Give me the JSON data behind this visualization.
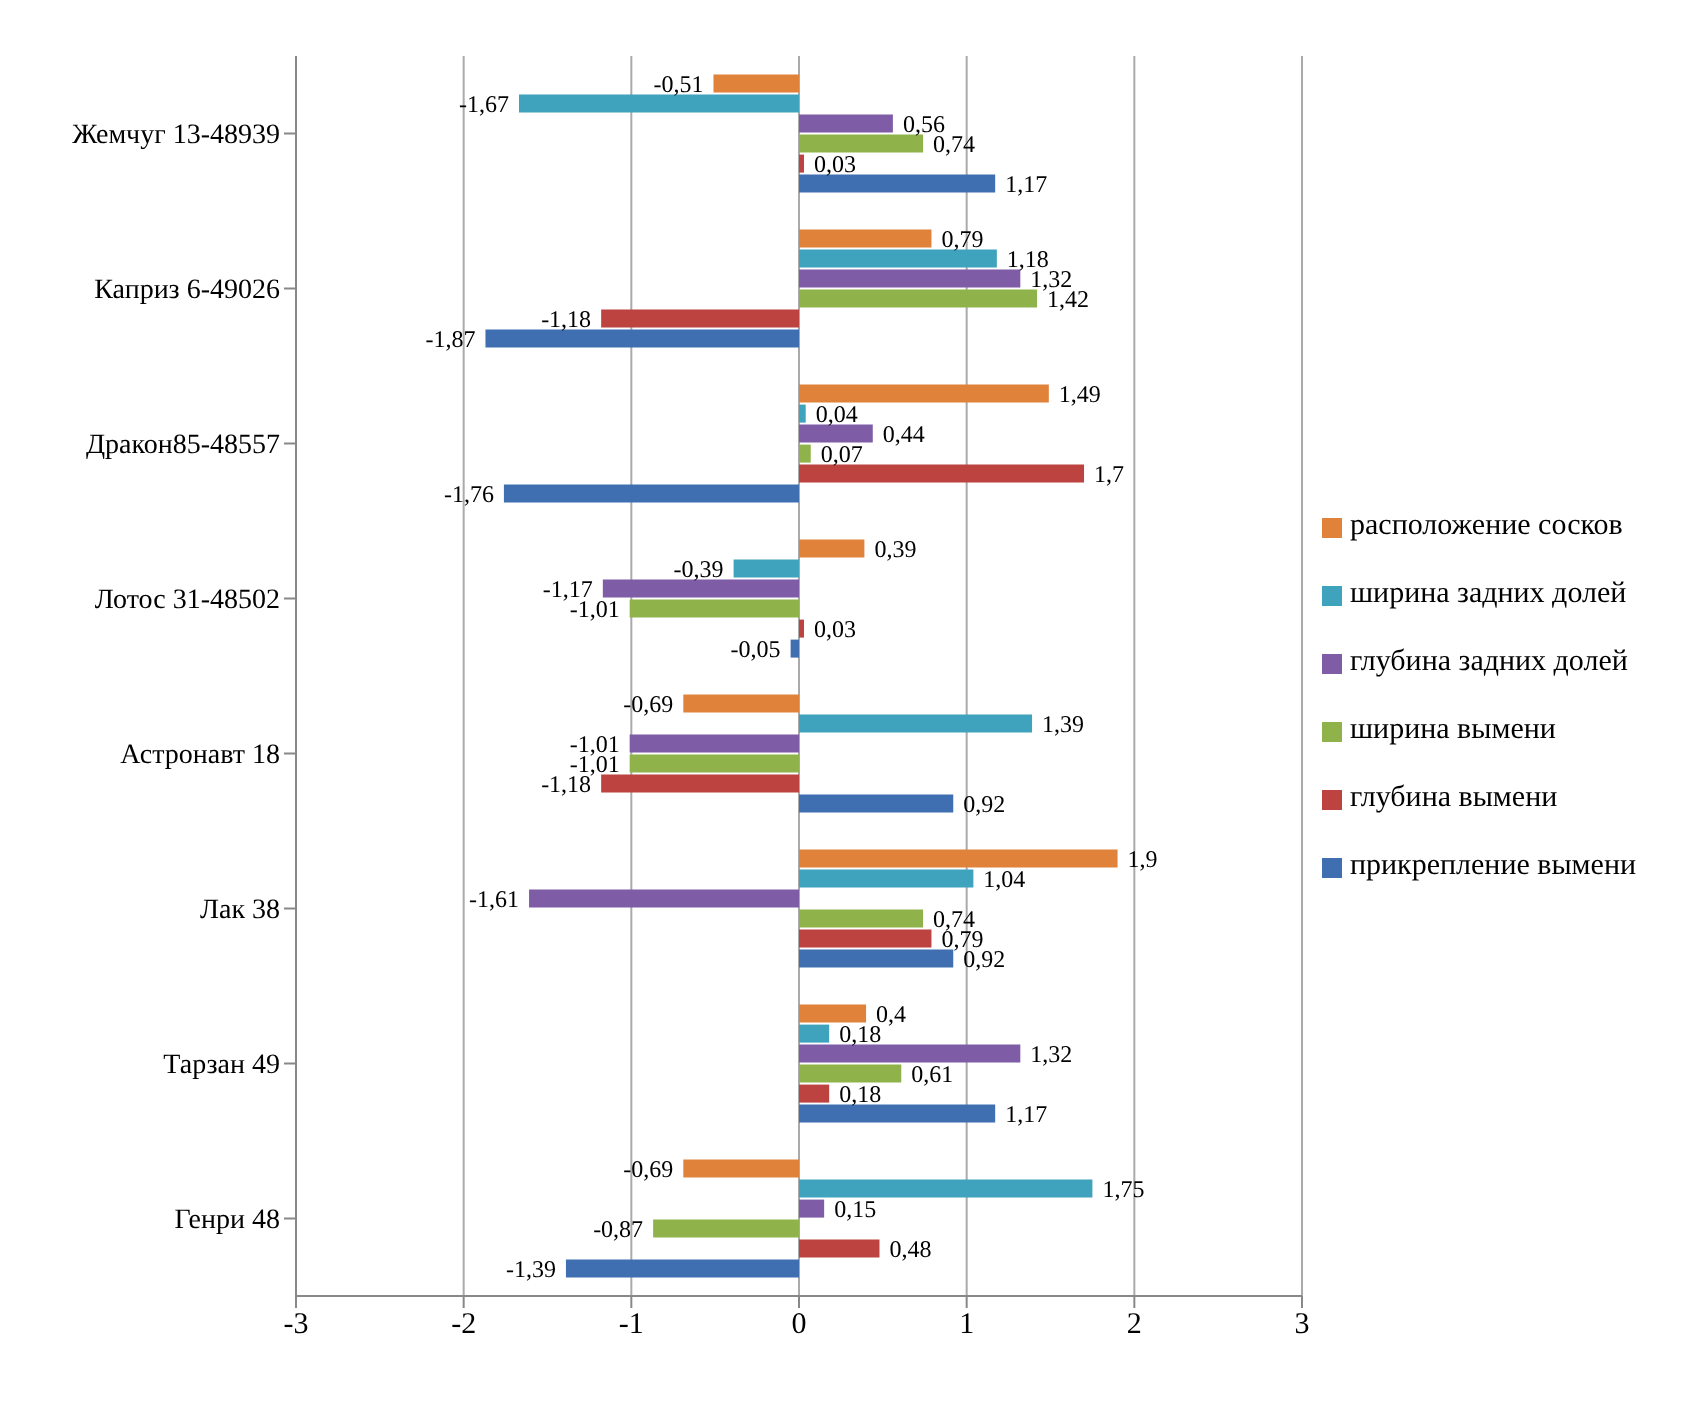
{
  "chart_data": {
    "type": "bar",
    "orientation": "horizontal",
    "categories": [
      "Жемчуг 13-48939",
      "Каприз 6-49026",
      "Дракон85-48557",
      "Лотос 31-48502",
      "Астронавт 18",
      "Лак 38",
      "Тарзан 49",
      "Генри 48"
    ],
    "series": [
      {
        "name": "расположение сосков",
        "color": "#e0823a",
        "values": [
          -0.51,
          0.79,
          1.49,
          0.39,
          -0.69,
          1.9,
          0.4,
          -0.69
        ],
        "value_labels": [
          "-0,51",
          "0,79",
          "1,49",
          "0,39",
          "-0,69",
          "1,9",
          "0,4",
          "-0,69"
        ]
      },
      {
        "name": "ширина задних долей",
        "color": "#3fa3bd",
        "values": [
          -1.67,
          1.18,
          0.04,
          -0.39,
          1.39,
          1.04,
          0.18,
          1.75
        ],
        "value_labels": [
          "-1,67",
          "1,18",
          "0,04",
          "-0,39",
          "1,39",
          "1,04",
          "0,18",
          "1,75"
        ]
      },
      {
        "name": "глубина задних долей",
        "color": "#7e5ca6",
        "values": [
          0.56,
          1.32,
          0.44,
          -1.17,
          -1.01,
          -1.61,
          1.32,
          0.15
        ],
        "value_labels": [
          "0,56",
          "1,32",
          "0,44",
          "-1,17",
          "-1,01",
          "-1,61",
          "1,32",
          "0,15"
        ]
      },
      {
        "name": "ширина вымени",
        "color": "#8fb34a",
        "values": [
          0.74,
          1.42,
          0.07,
          -1.01,
          -1.01,
          0.74,
          0.61,
          -0.87
        ],
        "value_labels": [
          "0,74",
          "1,42",
          "0,07",
          "-1,01",
          "-1,01",
          "0,74",
          "0,61",
          "-0,87"
        ]
      },
      {
        "name": "глубина вымени",
        "color": "#bc433f",
        "values": [
          0.03,
          -1.18,
          1.7,
          0.03,
          -1.18,
          0.79,
          0.18,
          0.48
        ],
        "value_labels": [
          "0,03",
          "-1,18",
          "1,7",
          "0,03",
          "-1,18",
          "0,79",
          "0,18",
          "0,48"
        ]
      },
      {
        "name": "прикрепление вымени",
        "color": "#3f6fb0",
        "values": [
          1.17,
          -1.87,
          -1.76,
          -0.05,
          0.92,
          0.92,
          1.17,
          -1.39
        ],
        "value_labels": [
          "1,17",
          "-1,87",
          "-1,76",
          "-0,05",
          "0,92",
          "0,92",
          "1,17",
          "-1,39"
        ]
      }
    ],
    "xlim": [
      -3,
      3
    ],
    "xticks": [
      -3,
      -2,
      -1,
      0,
      1,
      2,
      3
    ],
    "grid": "x",
    "legend": "right"
  }
}
